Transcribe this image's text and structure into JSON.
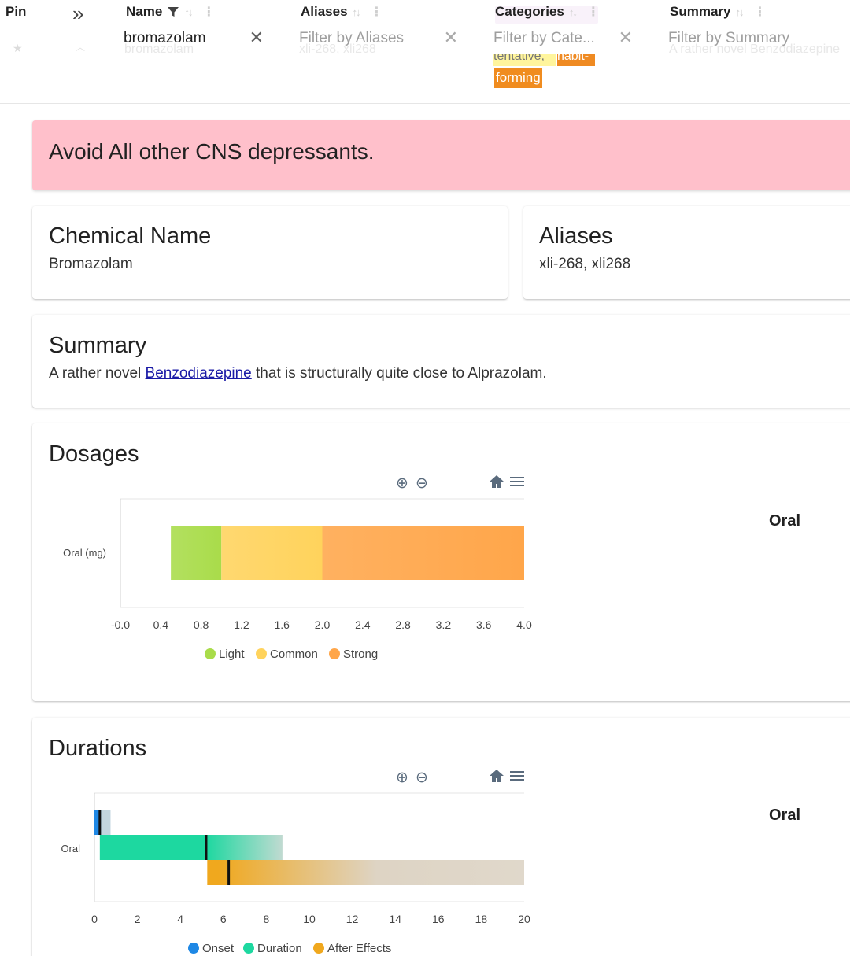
{
  "header": {
    "columns": {
      "pin": {
        "title": "Pin"
      },
      "name": {
        "title": "Name",
        "filter_value": "bromazolam",
        "ghost": "bromazolam"
      },
      "aliases": {
        "title": "Aliases",
        "placeholder": "Filter by Aliases",
        "ghost": "xli-268, xli268"
      },
      "categories": {
        "title": "Categories",
        "placeholder": "Filter by Cate...",
        "chip_partial_1": "tentative,",
        "chip_partial_2": "habit-",
        "chip_visible": "forming"
      },
      "summary": {
        "title": "Summary",
        "placeholder": "Filter by Summary",
        "ghost": "A rather novel Benzodiazepine"
      }
    },
    "icons": {
      "collapse": "double-chevron-right-icon",
      "filter": "funnel-icon",
      "sort": "sort-arrows-icon",
      "more": "vertical-dots-icon",
      "clear": "close-icon"
    }
  },
  "warning": {
    "text": "Avoid All other CNS depressants.",
    "color": "#ffc0cb"
  },
  "chemical_name": {
    "title": "Chemical Name",
    "value": "Bromazolam"
  },
  "aliases": {
    "title": "Aliases",
    "value": "xli-268, xli268"
  },
  "summary": {
    "title": "Summary",
    "prefix": "A rather novel ",
    "link": "Benzodiazepine",
    "suffix": " that is structurally quite close to Alprazolam."
  },
  "dosages": {
    "title": "Dosages",
    "route_label": "Oral",
    "toolbar": [
      "zoom-in-icon",
      "zoom-out-icon",
      "home-icon",
      "menu-icon"
    ]
  },
  "durations": {
    "title": "Durations",
    "route_label": "Oral",
    "toolbar": [
      "zoom-in-icon",
      "zoom-out-icon",
      "home-icon",
      "menu-icon"
    ]
  },
  "chart_data": [
    {
      "type": "bar",
      "orientation": "horizontal",
      "stacked": true,
      "categories": [
        "Oral (mg)"
      ],
      "series": [
        {
          "name": "Light",
          "color": "#a9dc4a",
          "range": [
            0.5,
            1.0
          ]
        },
        {
          "name": "Common",
          "color": "#ffd35c",
          "range": [
            1.0,
            2.0
          ]
        },
        {
          "name": "Strong",
          "color": "#ffa64a",
          "range": [
            2.0,
            4.0
          ]
        }
      ],
      "xlim": [
        0,
        4
      ],
      "xticks": [
        "-0.0",
        "0.4",
        "0.8",
        "1.2",
        "1.6",
        "2.0",
        "2.4",
        "2.8",
        "3.2",
        "3.6",
        "4.0"
      ],
      "legend": "bottom-center"
    },
    {
      "type": "bar",
      "orientation": "horizontal",
      "categories": [
        "Oral"
      ],
      "series": [
        {
          "name": "Onset",
          "color": "#1e88e5",
          "range": [
            0,
            0.75
          ],
          "solid_until": 0.3,
          "marker": 0.25
        },
        {
          "name": "Duration",
          "color": "#1dd8a0",
          "range": [
            0.25,
            8.75
          ],
          "solid_until": 5.2,
          "marker": 5.2
        },
        {
          "name": "After Effects",
          "color": "#f0a81e",
          "range": [
            5.25,
            20
          ],
          "solid_until": 5.75,
          "marker": 6.25
        }
      ],
      "xlim": [
        0,
        20
      ],
      "xticks": [
        "0",
        "2",
        "4",
        "6",
        "8",
        "10",
        "12",
        "14",
        "16",
        "18",
        "20"
      ],
      "legend": "bottom-center"
    }
  ]
}
